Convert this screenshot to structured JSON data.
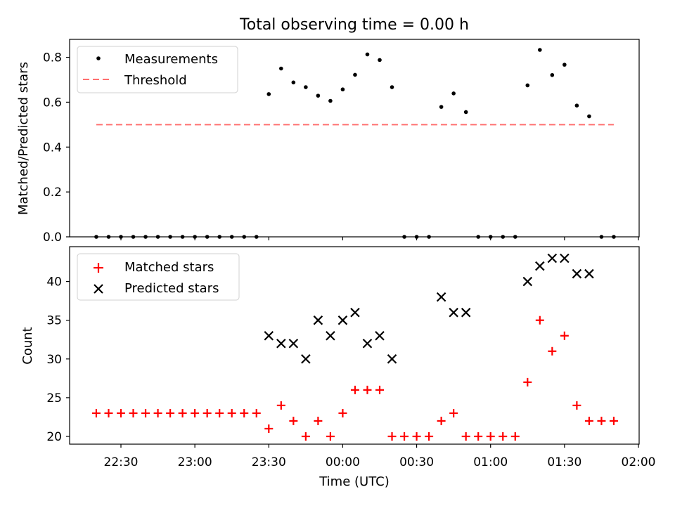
{
  "title": "Total observing time = 0.00 h",
  "x_axis": {
    "label": "Time (UTC)",
    "ticks": [
      "22:30",
      "23:00",
      "23:30",
      "00:00",
      "00:30",
      "01:00",
      "01:30",
      "02:00"
    ]
  },
  "colors": {
    "threshold": "#ff7070",
    "matched": "#ff0000",
    "predicted": "#000000",
    "measurement": "#000000"
  },
  "chart_data": [
    {
      "type": "scatter",
      "ylabel": "Matched/Predicted stars",
      "ylim": [
        0,
        0.88
      ],
      "yticks": [
        "0.0",
        "0.2",
        "0.4",
        "0.6",
        "0.8"
      ],
      "legend_placement": "top-left",
      "legend": [
        "Measurements",
        "Threshold"
      ],
      "series": [
        {
          "name": "Measurements",
          "marker": "dot",
          "x": [
            "22:20",
            "22:25",
            "22:30",
            "22:35",
            "22:40",
            "22:45",
            "22:50",
            "22:55",
            "23:00",
            "23:05",
            "23:10",
            "23:15",
            "23:20",
            "23:25",
            "23:30",
            "23:35",
            "23:40",
            "23:45",
            "23:50",
            "23:55",
            "00:00",
            "00:05",
            "00:10",
            "00:15",
            "00:20",
            "00:25",
            "00:30",
            "00:35",
            "00:40",
            "00:45",
            "00:50",
            "00:55",
            "01:00",
            "01:05",
            "01:10",
            "01:15",
            "01:20",
            "01:25",
            "01:30",
            "01:35",
            "01:40",
            "01:45",
            "01:50"
          ],
          "y": [
            0,
            0,
            0,
            0,
            0,
            0,
            0,
            0,
            0,
            0,
            0,
            0,
            0,
            0,
            0.636,
            0.75,
            0.688,
            0.667,
            0.629,
            0.606,
            0.657,
            0.722,
            0.813,
            0.788,
            0.667,
            0,
            0,
            0,
            0.579,
            0.639,
            0.556,
            0,
            0,
            0,
            0,
            0.675,
            0.833,
            0.721,
            0.767,
            0.585,
            0.537,
            0,
            0
          ]
        },
        {
          "name": "Threshold",
          "style": "dashed",
          "x": [
            "22:20",
            "01:50"
          ],
          "y": [
            0.5,
            0.5
          ]
        }
      ]
    },
    {
      "type": "scatter",
      "ylabel": "Count",
      "ylim": [
        19,
        44.5
      ],
      "yticks": [
        "20",
        "25",
        "30",
        "35",
        "40"
      ],
      "legend_placement": "top-left",
      "legend": [
        "Matched stars",
        "Predicted stars"
      ],
      "series": [
        {
          "name": "Matched stars",
          "marker": "plus",
          "x": [
            "22:20",
            "22:25",
            "22:30",
            "22:35",
            "22:40",
            "22:45",
            "22:50",
            "22:55",
            "23:00",
            "23:05",
            "23:10",
            "23:15",
            "23:20",
            "23:25",
            "23:30",
            "23:35",
            "23:40",
            "23:45",
            "23:50",
            "23:55",
            "00:00",
            "00:05",
            "00:10",
            "00:15",
            "00:20",
            "00:25",
            "00:30",
            "00:35",
            "00:40",
            "00:45",
            "00:50",
            "00:55",
            "01:00",
            "01:05",
            "01:10",
            "01:15",
            "01:20",
            "01:25",
            "01:30",
            "01:35",
            "01:40",
            "01:45",
            "01:50"
          ],
          "y": [
            23,
            23,
            23,
            23,
            23,
            23,
            23,
            23,
            23,
            23,
            23,
            23,
            23,
            23,
            21,
            24,
            22,
            20,
            22,
            20,
            23,
            26,
            26,
            26,
            20,
            20,
            20,
            20,
            22,
            23,
            20,
            20,
            20,
            20,
            20,
            27,
            35,
            31,
            33,
            24,
            22,
            22,
            22
          ]
        },
        {
          "name": "Predicted stars",
          "marker": "x",
          "x": [
            "23:30",
            "23:35",
            "23:40",
            "23:45",
            "23:50",
            "23:55",
            "00:00",
            "00:05",
            "00:10",
            "00:15",
            "00:20",
            "00:40",
            "00:45",
            "00:50",
            "01:15",
            "01:20",
            "01:25",
            "01:30",
            "01:35",
            "01:40"
          ],
          "y": [
            33,
            32,
            32,
            30,
            35,
            33,
            35,
            36,
            32,
            33,
            30,
            38,
            36,
            36,
            40,
            42,
            43,
            43,
            41,
            41
          ]
        }
      ]
    }
  ]
}
